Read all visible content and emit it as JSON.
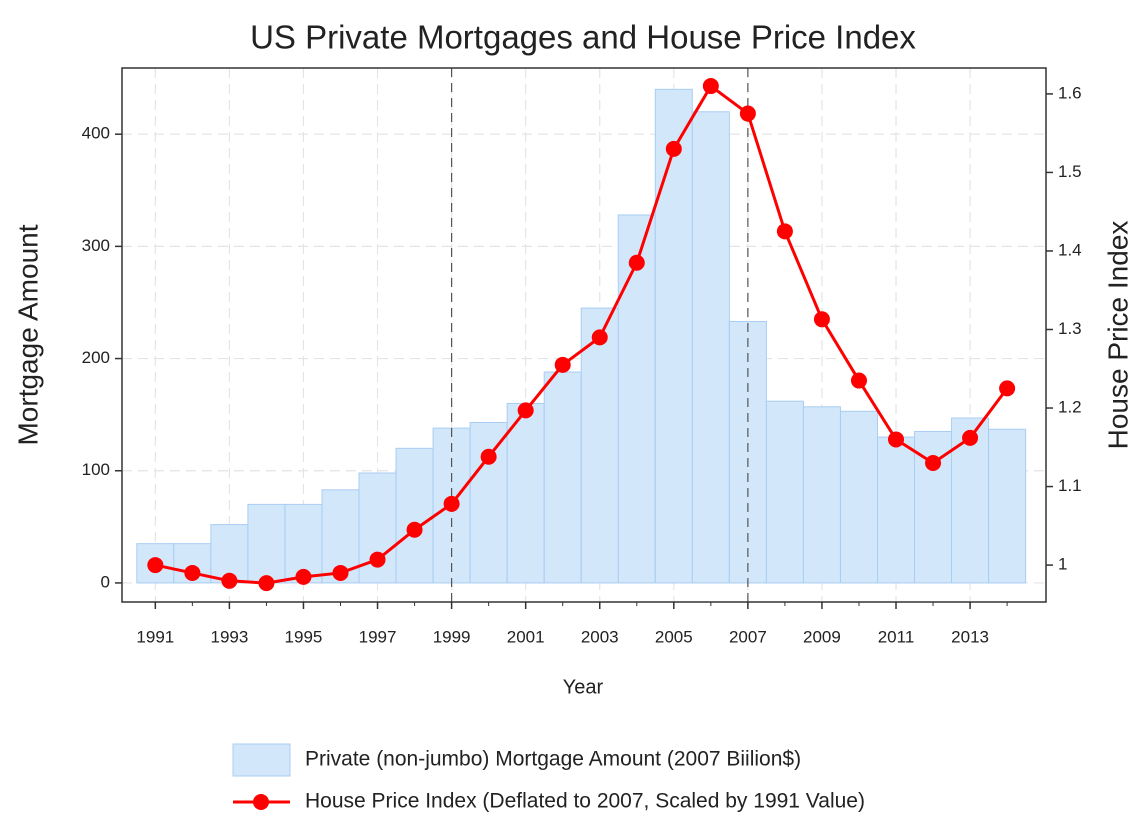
{
  "chart_data": {
    "type": "combo",
    "title": "US Private Mortgages and House Price Index",
    "x_label": "Year",
    "y_label": "Mortgage Amount",
    "y2_label": "House Price Index",
    "x": [
      1991,
      1992,
      1993,
      1994,
      1995,
      1996,
      1997,
      1998,
      1999,
      2000,
      2001,
      2002,
      2003,
      2004,
      2005,
      2006,
      2007,
      2008,
      2009,
      2010,
      2011,
      2012,
      2013,
      2014
    ],
    "series": [
      {
        "name": "Private (non-jumbo) Mortgage Amount (2007 Biilion$)",
        "type": "bar",
        "axis": "y",
        "color": "#d3e7fb",
        "edge_color": "#a9cdf3",
        "values": [
          35,
          35,
          52,
          70,
          70,
          83,
          98,
          120,
          138,
          143,
          160,
          188,
          245,
          328,
          440,
          420,
          233,
          162,
          157,
          153,
          130,
          135,
          147,
          137
        ]
      },
      {
        "name": "House Price Index (Deflated to 2007, Scaled by 1991 Value)",
        "type": "line",
        "axis": "y2",
        "color": "#ff0000",
        "values": [
          1.0,
          0.99,
          0.98,
          0.977,
          0.985,
          0.99,
          1.007,
          1.045,
          1.078,
          1.138,
          1.197,
          1.255,
          1.29,
          1.385,
          1.53,
          1.61,
          1.575,
          1.425,
          1.313,
          1.235,
          1.16,
          1.13,
          1.162,
          1.225
        ]
      }
    ],
    "vlines": [
      1999,
      2007
    ],
    "xlim": [
      1990.1,
      2015.05
    ],
    "xticks": [
      1991,
      1993,
      1995,
      1997,
      1999,
      2001,
      2003,
      2005,
      2007,
      2009,
      2011,
      2013
    ],
    "ylim": [
      -17,
      459
    ],
    "yticks": [
      0,
      100,
      200,
      300,
      400
    ],
    "y2lim": [
      0.953,
      1.633
    ],
    "y2ticks": [
      1,
      1.1,
      1.2,
      1.3,
      1.4,
      1.5,
      1.6
    ],
    "grid": true,
    "legend": "bottom"
  }
}
